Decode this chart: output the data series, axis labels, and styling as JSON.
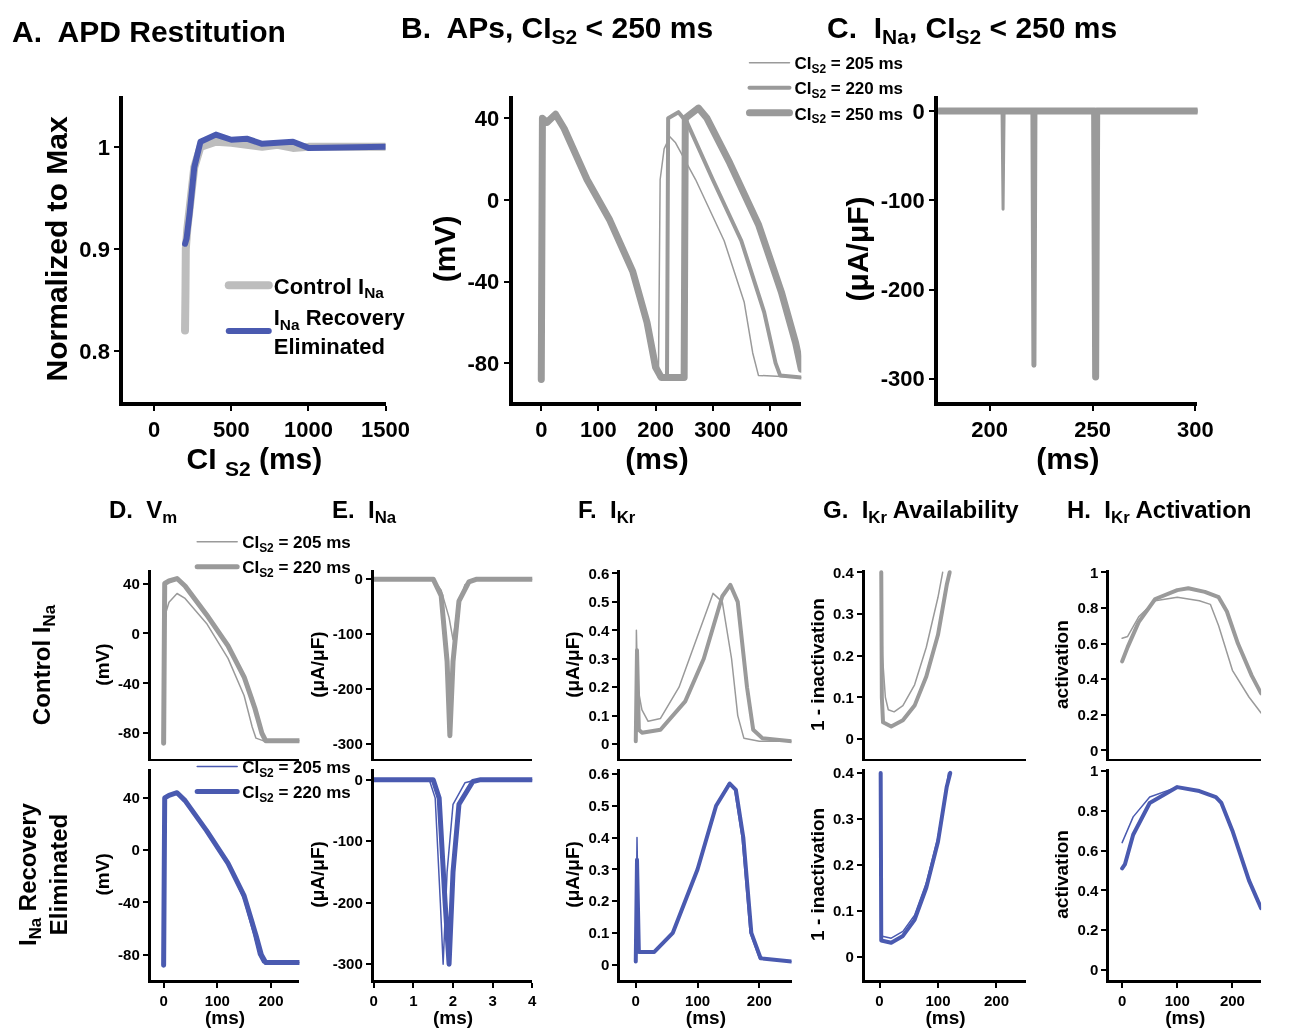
{
  "chart_data": [
    {
      "type": "line",
      "title": "A.  APD Restitution",
      "xlabel": "CI $_{S2}$ (ms)",
      "ylabel": "Normalized to Max",
      "xlim": [
        -200,
        1500
      ],
      "xticks": [
        0,
        500,
        1000,
        1500
      ],
      "ylim": [
        0.75,
        1.05
      ],
      "yticks": [
        0.8,
        0.9,
        1
      ],
      "legend": "bottom right",
      "grid": false,
      "series": [
        {
          "name": "Control I$_{Na}$",
          "color": "#bdbdbd",
          "x": [
            200,
            203,
            205,
            215,
            230,
            260,
            300,
            400,
            500,
            600,
            700,
            800,
            900,
            1000,
            1500
          ],
          "values": [
            0.82,
            0.86,
            0.9,
            0.92,
            0.94,
            0.98,
            1.0,
            1.005,
            1.004,
            1.002,
            1.0,
            1.002,
            0.999,
            1.0,
            1.0
          ]
        },
        {
          "name": "I$_{Na}$ Recovery\nEliminated",
          "color": "#4a5ab0",
          "x": [
            200,
            210,
            230,
            260,
            300,
            400,
            500,
            600,
            700,
            900,
            1000,
            1500
          ],
          "values": [
            0.905,
            0.91,
            0.935,
            0.98,
            1.005,
            1.012,
            1.007,
            1.008,
            1.003,
            1.005,
            0.999,
            1.0
          ]
        }
      ]
    },
    {
      "type": "line",
      "title": "B.  APs, CI$_{S2}$ < 250 ms",
      "xlabel": "(ms)",
      "ylabel": "(mV)",
      "xlim": [
        -50,
        455
      ],
      "xticks": [
        0,
        100,
        200,
        300,
        400
      ],
      "ylim": [
        -99,
        51
      ],
      "yticks": [
        -80,
        -40,
        0,
        40
      ],
      "legend": "top right",
      "series": [
        {
          "name": "CI$_{S2}$ = 205 ms",
          "color": "#9a9a9a",
          "x": [
            0,
            2,
            10,
            25,
            40,
            80,
            120,
            160,
            185,
            200,
            205,
            208,
            215,
            225,
            235,
            270,
            320,
            355,
            370,
            380,
            455
          ],
          "values": [
            -88,
            40,
            38,
            42,
            35,
            10,
            -10,
            -35,
            -60,
            -82,
            -87,
            10,
            25,
            31,
            28,
            10,
            -20,
            -50,
            -75,
            -86,
            -87
          ]
        },
        {
          "name": "CI$_{S2}$ = 220 ms",
          "color": "#9a9a9a",
          "x": [
            0,
            2,
            10,
            25,
            40,
            80,
            120,
            160,
            185,
            200,
            210,
            220,
            222,
            240,
            255,
            300,
            350,
            390,
            410,
            418,
            455
          ],
          "values": [
            -88,
            40,
            38,
            42,
            35,
            10,
            -10,
            -35,
            -60,
            -82,
            -87,
            -87,
            40,
            43,
            38,
            10,
            -20,
            -55,
            -80,
            -86,
            -87
          ]
        },
        {
          "name": "CI$_{S2}$ = 250 ms",
          "color": "#9a9a9a",
          "x": [
            0,
            2,
            10,
            25,
            40,
            80,
            120,
            160,
            185,
            200,
            210,
            250,
            252,
            275,
            290,
            330,
            380,
            420,
            445,
            455
          ],
          "values": [
            -88,
            40,
            38,
            42,
            35,
            10,
            -10,
            -35,
            -60,
            -82,
            -87,
            -87,
            40,
            45,
            40,
            18,
            -12,
            -45,
            -70,
            -83
          ]
        }
      ]
    },
    {
      "type": "line",
      "title": "C.  I$_{Na}$, CI$_{S2}$ < 250 ms",
      "xlabel": "(ms)",
      "ylabel": "(μA/μF)",
      "xlim": [
        175,
        301
      ],
      "xticks": [
        200,
        250,
        300
      ],
      "ylim": [
        -326,
        17
      ],
      "yticks": [
        -300,
        -200,
        -100,
        0
      ],
      "series": [
        {
          "color": "#9a9a9a",
          "x": [
            175,
            206,
            206.5,
            207,
            301
          ],
          "values": [
            0,
            0,
            -110,
            0,
            0
          ]
        },
        {
          "color": "#9a9a9a",
          "x": [
            175,
            221,
            221.5,
            222,
            301
          ],
          "values": [
            0,
            0,
            -285,
            0,
            0
          ]
        },
        {
          "color": "#9a9a9a",
          "x": [
            175,
            251,
            251.5,
            252,
            301
          ],
          "values": [
            0,
            0,
            -298,
            0,
            0
          ]
        }
      ]
    },
    {
      "type": "line",
      "title": "D.  V$_{m}$",
      "ylabel": "(mV)",
      "xlim": [
        -24,
        253
      ],
      "xticks": [
        0,
        100,
        200
      ],
      "ylim": [
        -101,
        51
      ],
      "yticks": [
        -80,
        -40,
        0,
        40
      ],
      "tick_labels": "y",
      "legend": "top right",
      "annotations": [
        "Control I$_{Na}$"
      ],
      "series": [
        {
          "name": "CI$_{S2}$ = 205 ms",
          "color": "#9a9a9a",
          "x": [
            0,
            3,
            10,
            25,
            40,
            80,
            120,
            150,
            165,
            172,
            185,
            253
          ],
          "values": [
            -88,
            15,
            25,
            32,
            28,
            8,
            -20,
            -50,
            -75,
            -84,
            -86,
            -86
          ]
        },
        {
          "name": "CI$_{S2}$ = 220 ms",
          "color": "#9a9a9a",
          "x": [
            0,
            2,
            10,
            25,
            40,
            80,
            120,
            150,
            170,
            183,
            190,
            253
          ],
          "values": [
            -88,
            40,
            42,
            44,
            38,
            15,
            -10,
            -35,
            -60,
            -80,
            -86,
            -86
          ]
        }
      ]
    },
    {
      "type": "line",
      "title": "E.  I$_{Na}$",
      "ylabel": "(μA/μF)",
      "xlim": [
        0,
        4
      ],
      "xticks": [
        0,
        1,
        2,
        3,
        4
      ],
      "ylim": [
        -328,
        17
      ],
      "yticks": [
        -300,
        -200,
        -100,
        0
      ],
      "tick_labels": "y",
      "series": [
        {
          "color": "#9a9a9a",
          "x": [
            0,
            1.5,
            1.7,
            1.9,
            2.0,
            2.1,
            2.3,
            2.6,
            4
          ],
          "values": [
            0,
            0,
            -20,
            -70,
            -110,
            -60,
            -10,
            0,
            0
          ]
        },
        {
          "color": "#9a9a9a",
          "x": [
            0,
            1.5,
            1.7,
            1.85,
            1.92,
            2.0,
            2.15,
            2.4,
            2.6,
            4
          ],
          "values": [
            0,
            0,
            -30,
            -150,
            -285,
            -150,
            -40,
            -5,
            0,
            0
          ]
        }
      ]
    },
    {
      "type": "line",
      "title": "F.  I$_{Kr}$",
      "ylabel": "(μA/μF)",
      "xlim": [
        -25,
        252
      ],
      "xticks": [
        0,
        100,
        200
      ],
      "ylim": [
        -0.054,
        0.613
      ],
      "yticks": [
        0,
        0.1,
        0.2,
        0.3,
        0.4,
        0.5,
        0.6
      ],
      "tick_labels": "y",
      "series": [
        {
          "color": "#9a9a9a",
          "x": [
            0,
            1,
            3,
            10,
            20,
            40,
            70,
            100,
            125,
            140,
            155,
            165,
            175,
            200,
            252
          ],
          "values": [
            0.01,
            0.4,
            0.2,
            0.12,
            0.08,
            0.09,
            0.2,
            0.38,
            0.53,
            0.5,
            0.3,
            0.1,
            0.02,
            0.01,
            0.01
          ]
        },
        {
          "color": "#9a9a9a",
          "x": [
            0,
            2,
            5,
            10,
            40,
            80,
            110,
            140,
            153,
            165,
            180,
            190,
            205,
            252
          ],
          "values": [
            0.01,
            0.33,
            0.05,
            0.04,
            0.05,
            0.15,
            0.3,
            0.52,
            0.56,
            0.5,
            0.2,
            0.05,
            0.02,
            0.01
          ]
        }
      ]
    },
    {
      "type": "line",
      "title": "G.  I$_{Kr}$ Availability",
      "ylabel": "1 - inactivation",
      "xlim": [
        -25,
        251
      ],
      "xticks": [
        0,
        100,
        200
      ],
      "ylim": [
        -0.049,
        0.406
      ],
      "yticks": [
        0,
        0.1,
        0.2,
        0.3,
        0.4
      ],
      "tick_labels": "y",
      "series": [
        {
          "color": "#9a9a9a",
          "x": [
            3,
            5,
            10,
            15,
            25,
            40,
            60,
            80,
            100,
            108
          ],
          "values": [
            0.4,
            0.2,
            0.1,
            0.07,
            0.065,
            0.08,
            0.13,
            0.22,
            0.34,
            0.4
          ]
        },
        {
          "color": "#9a9a9a",
          "x": [
            3,
            4,
            6,
            20,
            40,
            60,
            80,
            100,
            115,
            120
          ],
          "values": [
            0.4,
            0.1,
            0.04,
            0.03,
            0.045,
            0.08,
            0.15,
            0.25,
            0.37,
            0.4
          ]
        }
      ]
    },
    {
      "type": "line",
      "title": "H.  I$_{Kr}$ Activation",
      "ylabel": "activation",
      "xlim": [
        -23,
        252
      ],
      "xticks": [
        0,
        100,
        200
      ],
      "ylim": [
        -0.05,
        1.014
      ],
      "yticks": [
        0,
        0.2,
        0.4,
        0.6,
        0.8,
        1
      ],
      "tick_labels": "y",
      "series": [
        {
          "color": "#9a9a9a",
          "x": [
            0,
            10,
            30,
            60,
            100,
            140,
            160,
            175,
            200,
            230,
            252
          ],
          "values": [
            0.63,
            0.64,
            0.75,
            0.84,
            0.86,
            0.84,
            0.82,
            0.7,
            0.45,
            0.3,
            0.21
          ]
        },
        {
          "color": "#9a9a9a",
          "x": [
            0,
            10,
            30,
            60,
            100,
            120,
            150,
            175,
            190,
            210,
            235,
            252
          ],
          "values": [
            0.5,
            0.58,
            0.72,
            0.85,
            0.9,
            0.91,
            0.89,
            0.86,
            0.78,
            0.6,
            0.42,
            0.32
          ]
        }
      ]
    },
    {
      "type": "line",
      "xlabel": "(ms)",
      "ylabel": "(mV)",
      "xlim": [
        -24,
        253
      ],
      "xticks": [
        0,
        100,
        200
      ],
      "ylim": [
        -99,
        62
      ],
      "yticks": [
        -80,
        -40,
        0,
        40
      ],
      "legend": "top right",
      "annotations": [
        "I$_{Na}$ Recovery\nEliminated"
      ],
      "series": [
        {
          "name": "CI$_{S2}$ = 205 ms",
          "color": "#4a5ab0",
          "x": [
            0,
            2,
            10,
            25,
            40,
            80,
            120,
            150,
            168,
            177,
            185,
            253
          ],
          "values": [
            -88,
            40,
            42,
            44,
            38,
            15,
            -10,
            -38,
            -65,
            -80,
            -86,
            -86
          ]
        },
        {
          "name": "CI$_{S2}$ = 220 ms",
          "color": "#4a5ab0",
          "x": [
            0,
            2,
            10,
            25,
            40,
            80,
            120,
            150,
            172,
            182,
            190,
            253
          ],
          "values": [
            -88,
            40,
            42,
            44,
            38,
            15,
            -10,
            -35,
            -65,
            -80,
            -86,
            -86
          ]
        }
      ]
    },
    {
      "type": "line",
      "xlabel": "(ms)",
      "ylabel": "(μA/μF)",
      "xlim": [
        0,
        4
      ],
      "xticks": [
        0,
        1,
        2,
        3,
        4
      ],
      "ylim": [
        -325,
        17
      ],
      "yticks": [
        -300,
        -200,
        -100,
        0
      ],
      "series": [
        {
          "color": "#4a5ab0",
          "x": [
            0,
            1.4,
            1.55,
            1.68,
            1.75,
            1.85,
            2.0,
            2.3,
            2.6,
            4
          ],
          "values": [
            0,
            0,
            -30,
            -200,
            -300,
            -150,
            -40,
            -5,
            0,
            0
          ]
        },
        {
          "color": "#4a5ab0",
          "x": [
            0,
            1.5,
            1.65,
            1.8,
            1.9,
            2.0,
            2.15,
            2.5,
            2.7,
            4
          ],
          "values": [
            0,
            0,
            -30,
            -200,
            -300,
            -150,
            -40,
            -3,
            0,
            0
          ]
        }
      ]
    },
    {
      "type": "line",
      "xlabel": "(ms)",
      "ylabel": "(μA/μF)",
      "xlim": [
        -25,
        252
      ],
      "xticks": [
        0,
        100,
        200
      ],
      "ylim": [
        -0.047,
        0.615
      ],
      "yticks": [
        0,
        0.1,
        0.2,
        0.3,
        0.4,
        0.5,
        0.6
      ],
      "series": [
        {
          "color": "#4a5ab0",
          "x": [
            0,
            2,
            5,
            30,
            60,
            100,
            130,
            150,
            160,
            172,
            185,
            200,
            252
          ],
          "values": [
            0.01,
            0.4,
            0.04,
            0.04,
            0.1,
            0.3,
            0.5,
            0.57,
            0.55,
            0.4,
            0.1,
            0.02,
            0.01
          ]
        },
        {
          "color": "#4a5ab0",
          "x": [
            0,
            2,
            5,
            30,
            60,
            100,
            130,
            152,
            162,
            174,
            187,
            202,
            252
          ],
          "values": [
            0.01,
            0.33,
            0.04,
            0.04,
            0.1,
            0.3,
            0.5,
            0.57,
            0.55,
            0.4,
            0.1,
            0.02,
            0.01
          ]
        }
      ]
    },
    {
      "type": "line",
      "xlabel": "(ms)",
      "ylabel": "1 - inactivation",
      "xlim": [
        -25,
        251
      ],
      "xticks": [
        0,
        100,
        200
      ],
      "ylim": [
        -0.05,
        0.408
      ],
      "yticks": [
        0,
        0.1,
        0.2,
        0.3,
        0.4
      ],
      "series": [
        {
          "color": "#4a5ab0",
          "x": [
            2,
            3,
            20,
            40,
            60,
            80,
            100,
            112,
            118
          ],
          "values": [
            0.4,
            0.045,
            0.04,
            0.055,
            0.09,
            0.16,
            0.26,
            0.35,
            0.4
          ]
        },
        {
          "color": "#4a5ab0",
          "x": [
            2,
            3,
            20,
            40,
            60,
            80,
            100,
            115,
            121
          ],
          "values": [
            0.4,
            0.035,
            0.03,
            0.045,
            0.08,
            0.15,
            0.25,
            0.37,
            0.4
          ]
        }
      ]
    },
    {
      "type": "line",
      "xlabel": "(ms)",
      "ylabel": "activation",
      "xlim": [
        -23,
        252
      ],
      "xticks": [
        0,
        100,
        200
      ],
      "ylim": [
        -0.05,
        1.01
      ],
      "yticks": [
        0,
        0.2,
        0.4,
        0.6,
        0.8,
        1
      ],
      "series": [
        {
          "color": "#4a5ab0",
          "x": [
            0,
            20,
            50,
            100,
            140,
            170,
            180,
            200,
            230,
            252
          ],
          "values": [
            0.64,
            0.77,
            0.87,
            0.92,
            0.9,
            0.87,
            0.84,
            0.7,
            0.45,
            0.31
          ]
        },
        {
          "color": "#4a5ab0",
          "x": [
            0,
            5,
            20,
            50,
            100,
            140,
            170,
            180,
            200,
            230,
            252
          ],
          "values": [
            0.51,
            0.53,
            0.68,
            0.84,
            0.92,
            0.9,
            0.87,
            0.84,
            0.7,
            0.45,
            0.31
          ]
        }
      ]
    }
  ]
}
